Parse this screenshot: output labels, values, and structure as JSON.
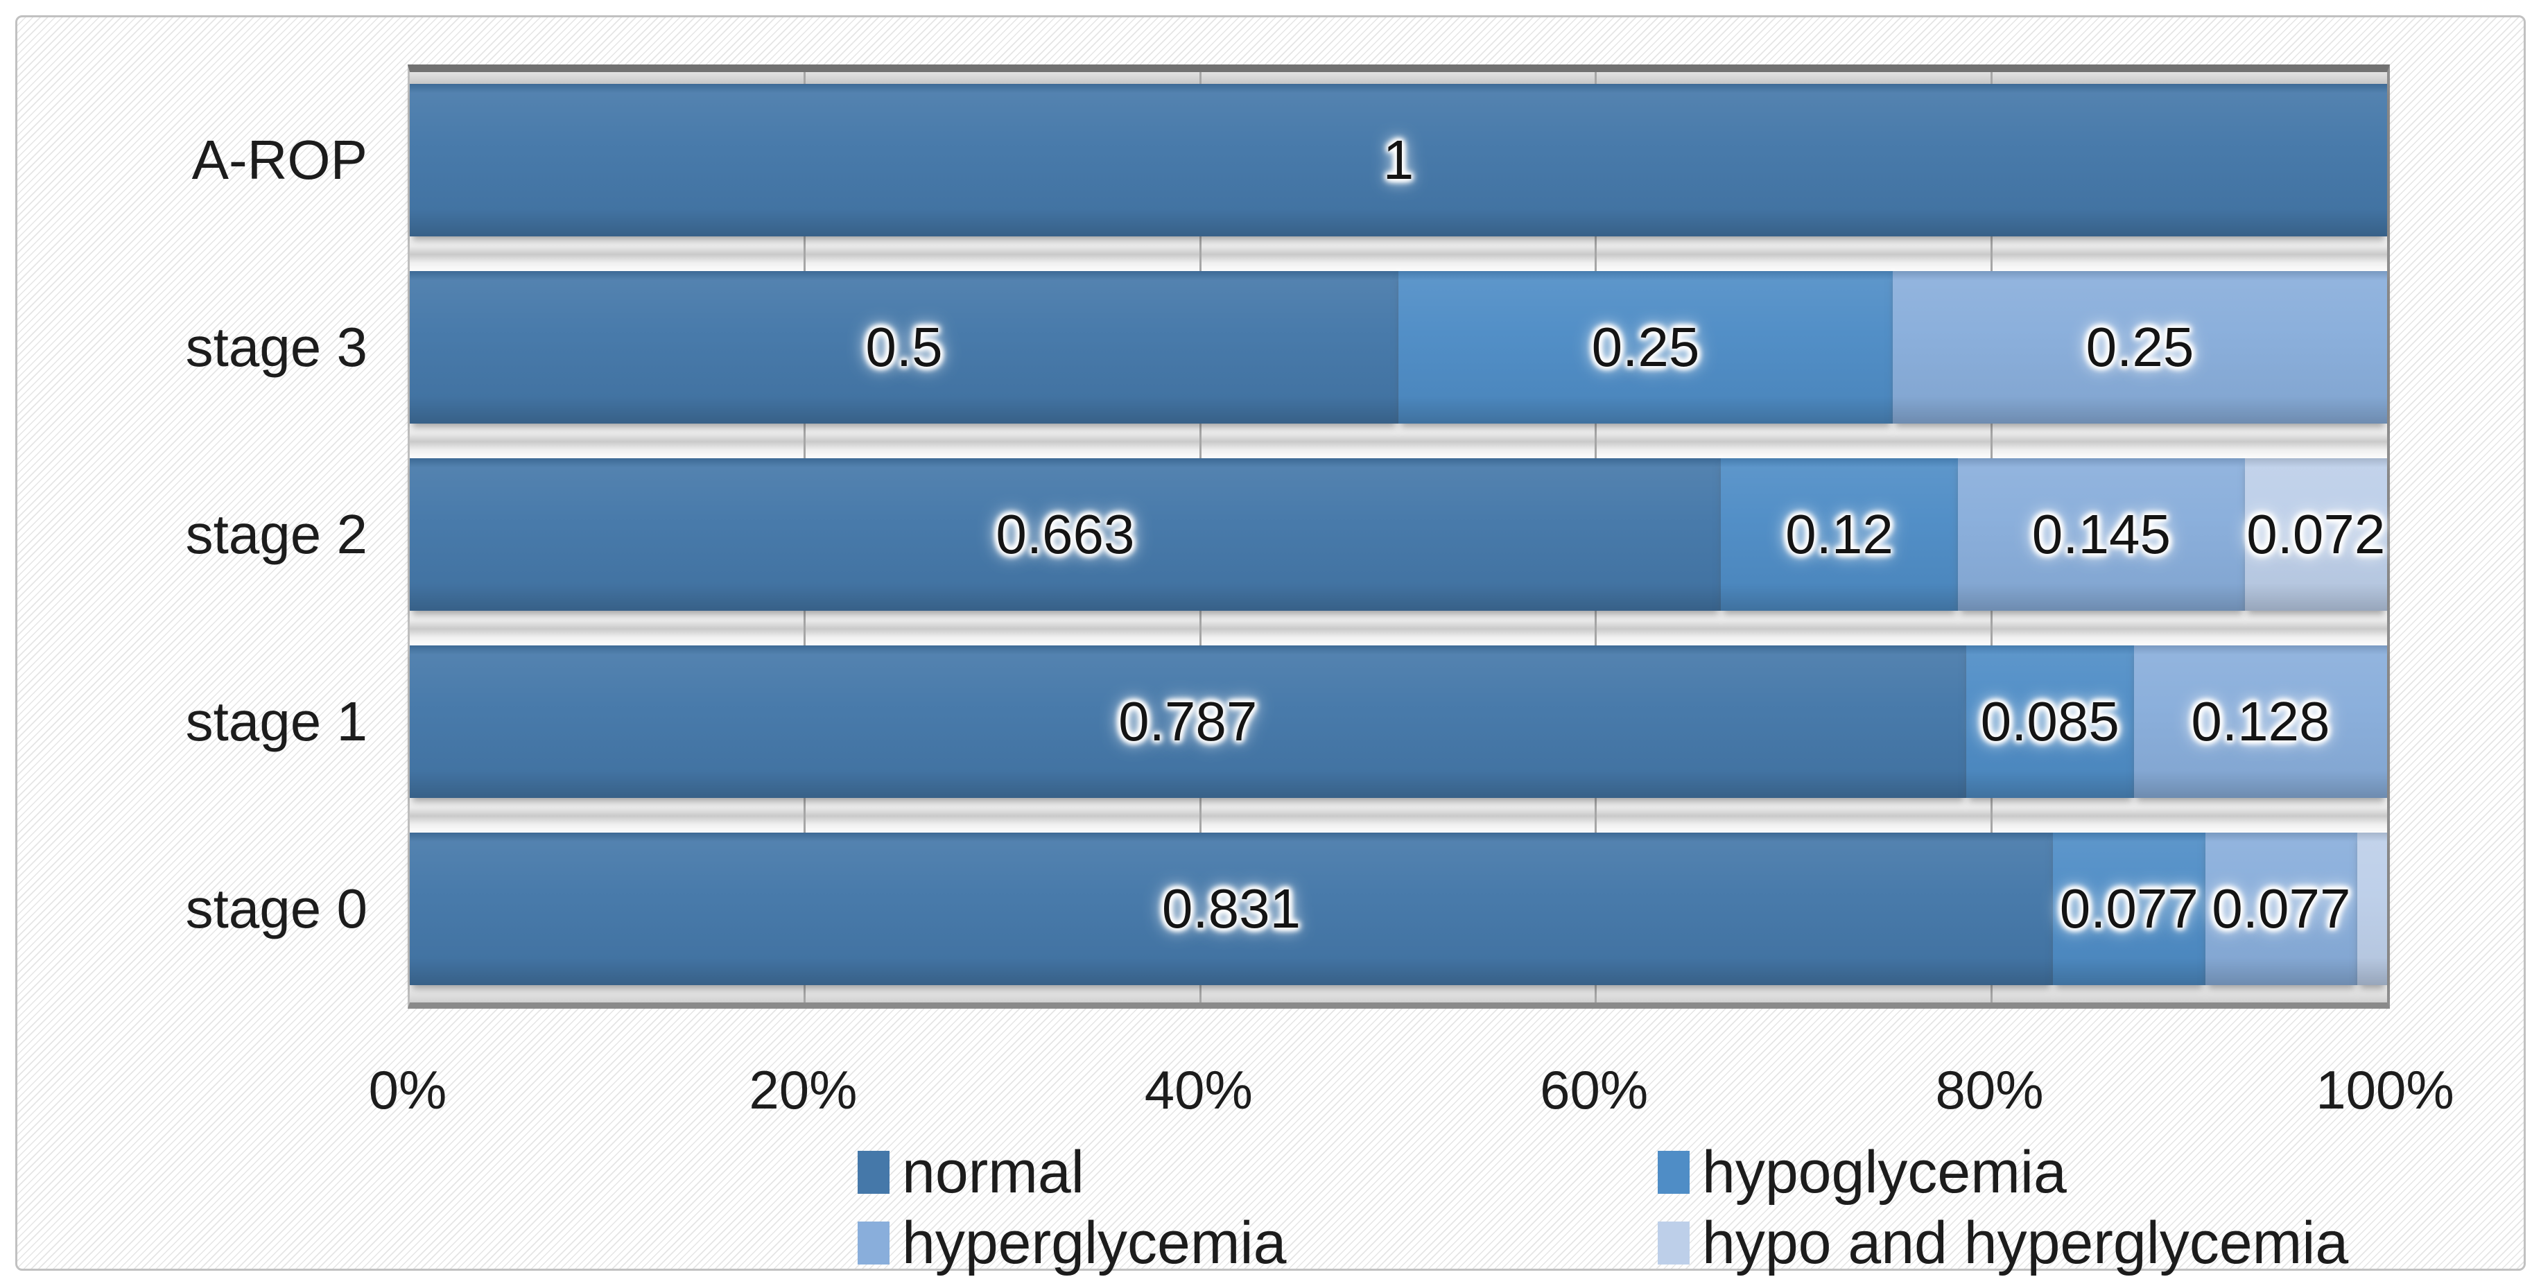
{
  "chart_data": {
    "type": "bar",
    "orientation": "horizontal",
    "stacked": true,
    "title": "",
    "categories": [
      "A-ROP",
      "stage 3",
      "stage 2",
      "stage 1",
      "stage 0"
    ],
    "series": [
      {
        "name": "normal",
        "color": "#4578A9",
        "values": [
          1,
          0.5,
          0.663,
          0.787,
          0.831
        ],
        "labels": [
          "1",
          "0.5",
          "0.663",
          "0.787",
          "0.831"
        ]
      },
      {
        "name": "hypoglycemia",
        "color": "#4F8DC6",
        "values": [
          0,
          0.25,
          0.12,
          0.085,
          0.077
        ],
        "labels": [
          "",
          "0.25",
          "0.12",
          "0.085",
          "0.077"
        ]
      },
      {
        "name": "hyperglycemia",
        "color": "#89AEDB",
        "values": [
          0,
          0.25,
          0.145,
          0.128,
          0.077
        ],
        "labels": [
          "",
          "0.25",
          "0.145",
          "0.128",
          "0.077"
        ]
      },
      {
        "name": "hypo and hyperglycemia",
        "color": "#BDCFE9",
        "values": [
          0,
          0,
          0.072,
          0,
          0.015
        ],
        "labels": [
          "",
          "",
          "0.072",
          "",
          ""
        ]
      }
    ],
    "x_axis": {
      "min": 0,
      "max": 1,
      "tick_labels": [
        "0%",
        "20%",
        "40%",
        "60%",
        "80%",
        "100%"
      ],
      "grid": "vertical"
    },
    "legend": {
      "position": "bottom",
      "columns": 2,
      "items": [
        "normal",
        "hypoglycemia",
        "hyperglycemia",
        "hypo and hyperglycemia"
      ]
    }
  },
  "style": {
    "accent_normal": "#4578A9",
    "accent_hypoglycemia": "#4F8DC6",
    "accent_hyperglycemia": "#89AEDB",
    "accent_hypo_and_hyper": "#BDCFE9",
    "gridline_color": "#a6a6a6",
    "frame_border_color": "#c1c1c1",
    "text_color": "#1c1c1c"
  }
}
